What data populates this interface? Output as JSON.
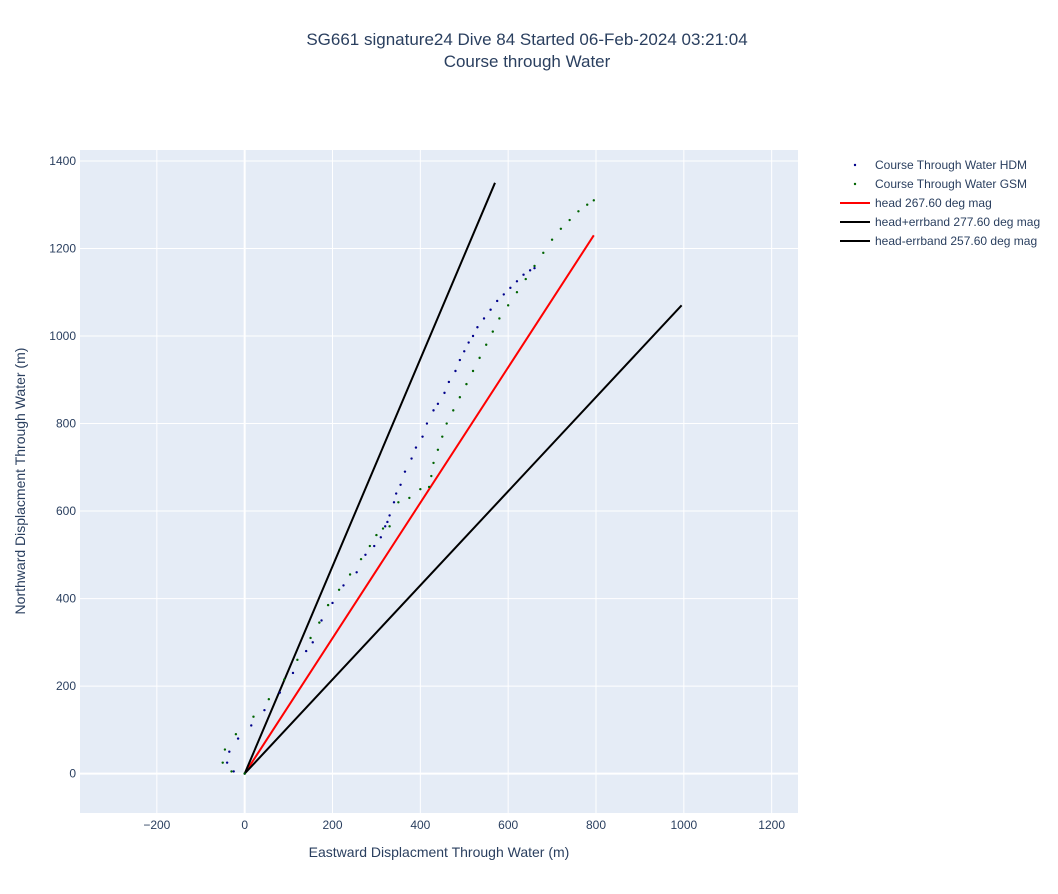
{
  "chart_data": {
    "type": "scatter",
    "title_line1": "SG661 signature24 Dive 84 Started 06-Feb-2024 03:21:04",
    "title_line2": "Course through Water",
    "xlabel": "Eastward Displacment Through Water (m)",
    "ylabel": "Northward Displacment Through Water (m)",
    "xlim": [
      -375,
      1260
    ],
    "ylim": [
      -90,
      1425
    ],
    "xticks": [
      -200,
      0,
      200,
      400,
      600,
      800,
      1000,
      1200
    ],
    "yticks": [
      0,
      200,
      400,
      600,
      800,
      1000,
      1200,
      1400
    ],
    "grid": true,
    "legend_position": "right",
    "background_color": "#e5ecf6",
    "series": [
      {
        "name": "Course Through Water HDM",
        "mode": "markers",
        "color": "#00008b",
        "x": [
          0,
          -25,
          -40,
          -35,
          -15,
          15,
          45,
          80,
          110,
          140,
          155,
          175,
          200,
          225,
          255,
          275,
          295,
          310,
          320,
          325,
          330,
          340,
          345,
          355,
          365,
          380,
          390,
          405,
          415,
          430,
          440,
          455,
          465,
          480,
          490,
          500,
          510,
          520,
          530,
          545,
          560,
          575,
          590,
          605,
          620,
          635,
          650,
          660
        ],
        "y": [
          0,
          5,
          25,
          50,
          80,
          110,
          145,
          185,
          230,
          280,
          300,
          350,
          390,
          430,
          460,
          500,
          520,
          540,
          565,
          575,
          590,
          620,
          640,
          660,
          690,
          720,
          745,
          770,
          800,
          830,
          845,
          870,
          895,
          920,
          945,
          965,
          985,
          1000,
          1020,
          1040,
          1060,
          1080,
          1095,
          1110,
          1125,
          1140,
          1150,
          1155
        ]
      },
      {
        "name": "Course Through Water GSM",
        "mode": "markers",
        "color": "#006400",
        "x": [
          0,
          -30,
          -50,
          -45,
          -20,
          20,
          55,
          90,
          120,
          150,
          170,
          190,
          215,
          240,
          265,
          285,
          300,
          315,
          330,
          350,
          375,
          400,
          420,
          425,
          430,
          440,
          450,
          460,
          475,
          490,
          505,
          520,
          535,
          550,
          565,
          580,
          600,
          620,
          640,
          660,
          680,
          700,
          720,
          740,
          760,
          780,
          795
        ],
        "y": [
          0,
          5,
          25,
          55,
          90,
          130,
          170,
          215,
          260,
          310,
          345,
          385,
          420,
          455,
          490,
          520,
          545,
          560,
          565,
          620,
          630,
          650,
          655,
          680,
          710,
          740,
          770,
          800,
          830,
          860,
          890,
          920,
          950,
          980,
          1010,
          1040,
          1070,
          1100,
          1130,
          1160,
          1190,
          1220,
          1245,
          1265,
          1285,
          1300,
          1310
        ]
      },
      {
        "name": "head 267.60 deg mag",
        "mode": "lines",
        "color": "#ff0000",
        "x": [
          0,
          795
        ],
        "y": [
          0,
          1230
        ]
      },
      {
        "name": "head+errband 277.60 deg mag",
        "mode": "lines",
        "color": "#000000",
        "x": [
          0,
          570
        ],
        "y": [
          0,
          1350
        ]
      },
      {
        "name": "head-errband 257.60 deg mag",
        "mode": "lines",
        "color": "#000000",
        "x": [
          0,
          995
        ],
        "y": [
          0,
          1070
        ]
      }
    ]
  }
}
